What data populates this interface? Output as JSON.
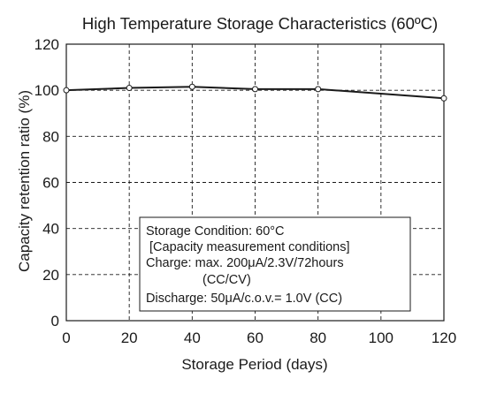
{
  "chart_data": {
    "type": "line",
    "title": "High Temperature Storage Characteristics (60ºC)",
    "xlabel": "Storage Period (days)",
    "ylabel": "Capacity retention ratio (%)",
    "xlim": [
      0,
      120
    ],
    "ylim": [
      0,
      120
    ],
    "xticks": [
      "0",
      "20",
      "40",
      "60",
      "80",
      "100",
      "120"
    ],
    "yticks": [
      "0",
      "20",
      "40",
      "60",
      "80",
      "100",
      "120"
    ],
    "grid": true,
    "series": [
      {
        "x": [
          0,
          20,
          40,
          60,
          80,
          120
        ],
        "values": [
          100,
          101,
          101.5,
          100.5,
          100.5,
          96.5
        ]
      }
    ],
    "annotation": {
      "lines": [
        "Storage Condition: 60°C",
        " [Capacity measurement conditions]",
        "Charge: max. 200μA/2.3V/72hours",
        "(CC/CV)",
        "Discharge: 50μA/c.o.v.= 1.0V (CC)"
      ]
    }
  }
}
